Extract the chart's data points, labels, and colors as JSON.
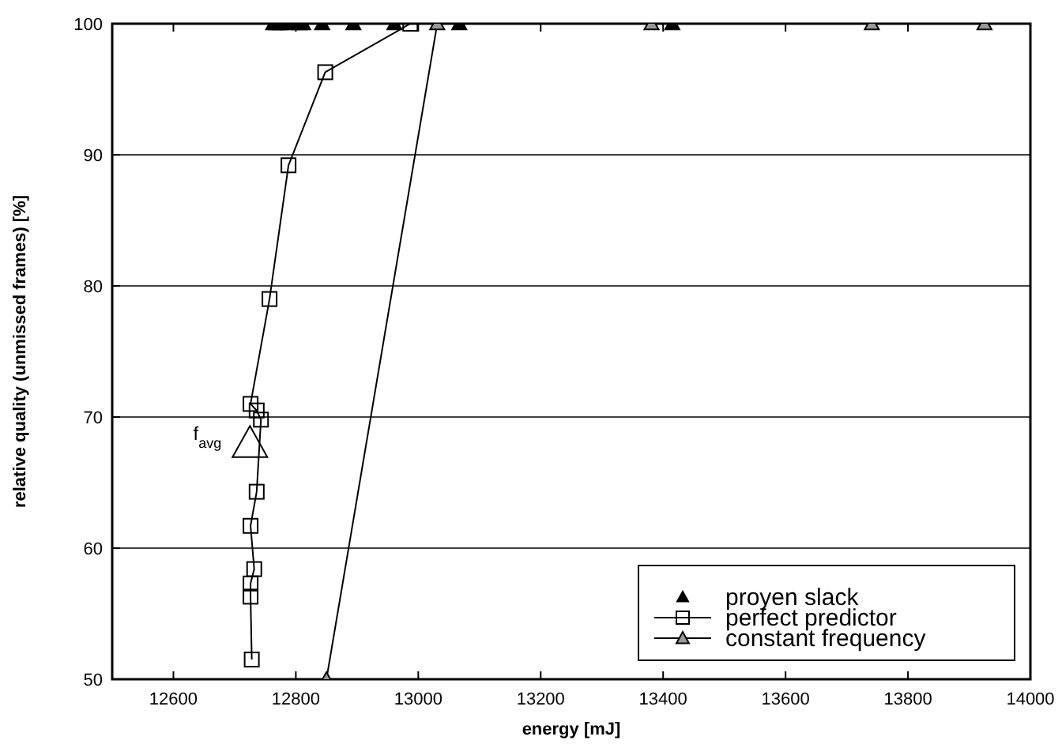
{
  "chart_data": {
    "type": "line",
    "xlabel": "energy [mJ]",
    "ylabel": "relative quality (unmissed frames) [%]",
    "xlim": [
      12500,
      14000
    ],
    "ylim": [
      50,
      100
    ],
    "xticks": [
      {
        "value": 12500,
        "label": null
      },
      12600,
      12800,
      13000,
      13200,
      13400,
      13600,
      13800,
      14000
    ],
    "yticks": [
      50,
      60,
      70,
      80,
      90,
      100
    ],
    "grid": "y",
    "legend": "bottom right",
    "series": [
      {
        "name": "proyen slack",
        "type": "scatter",
        "marker": "triangle",
        "color": "#000000",
        "x": [
          12763,
          12768,
          12775,
          12788,
          12806,
          12812,
          12843,
          12894,
          12961,
          13067,
          13415
        ],
        "values": [
          100,
          100,
          100,
          100,
          100,
          100,
          100,
          100,
          100,
          100,
          100
        ]
      },
      {
        "name": "perfect predictor",
        "marker": "square",
        "color": "#000000",
        "x": [
          12728,
          12726,
          12726,
          12732,
          12726,
          12736,
          12743,
          12736,
          12726,
          12757,
          12788,
          12848,
          12987
        ],
        "values": [
          51.5,
          56.3,
          57.3,
          58.4,
          61.7,
          64.3,
          69.8,
          70.5,
          71.0,
          79.0,
          89.2,
          96.3,
          100
        ]
      },
      {
        "name": "constant frequency",
        "marker": "triangle",
        "color": "#000000",
        "x": [
          12850,
          13031,
          13381,
          13741,
          13925
        ],
        "values": [
          50,
          100,
          100,
          100,
          100
        ]
      },
      {
        "type": "scatter",
        "marker": "triangle",
        "color": "#000000",
        "x": [
          12725
        ],
        "values": [
          68
        ]
      }
    ],
    "annotations": [
      {
        "text": "f$_{avg}$",
        "x": 12725,
        "y": 68
      }
    ]
  }
}
